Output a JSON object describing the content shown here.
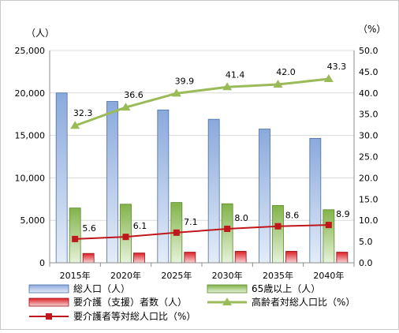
{
  "chart_data": {
    "type": "bar",
    "categories": [
      "2015年",
      "2020年",
      "2025年",
      "2030年",
      "2035年",
      "2040年"
    ],
    "left_axis": {
      "unit": "（人）",
      "range": [
        0,
        25000
      ],
      "ticks": [
        "0",
        "5,000",
        "10,000",
        "15,000",
        "20,000",
        "25,000"
      ]
    },
    "right_axis": {
      "unit": "（%）",
      "range": [
        0,
        50
      ],
      "ticks": [
        "0.0",
        "5.0",
        "10.0",
        "15.0",
        "20.0",
        "25.0",
        "30.0",
        "35.0",
        "40.0",
        "45.0",
        "50.0"
      ]
    },
    "grid": "horizontal",
    "legend_position": "bottom",
    "series": [
      {
        "name": "総人口（人）",
        "type": "bar",
        "axis": "left",
        "color": "#9ab6e2",
        "values": [
          20000,
          19000,
          18000,
          16900,
          15750,
          14650
        ]
      },
      {
        "name": "65歳以上（人）",
        "type": "bar",
        "axis": "left",
        "color": "#8fbf58",
        "values": [
          6450,
          6900,
          7100,
          6950,
          6750,
          6250
        ]
      },
      {
        "name": "要介護（支援）者数（人）",
        "type": "bar",
        "axis": "left",
        "color": "#e0262e",
        "values": [
          1100,
          1150,
          1250,
          1350,
          1350,
          1250
        ]
      },
      {
        "name": "高齢者対総人口比（%）",
        "type": "line",
        "axis": "right",
        "color": "#9bbb59",
        "values": [
          32.3,
          36.6,
          39.9,
          41.4,
          42.0,
          43.3
        ],
        "labels": [
          "32.3",
          "36.6",
          "39.9",
          "41.4",
          "42.0",
          "43.3"
        ]
      },
      {
        "name": "要介護者等対総人口比（%）",
        "type": "line",
        "axis": "right",
        "color": "#c0161c",
        "values": [
          5.6,
          6.1,
          7.1,
          8.0,
          8.6,
          8.9
        ],
        "labels": [
          "5.6",
          "6.1",
          "7.1",
          "8.0",
          "8.6",
          "8.9"
        ]
      }
    ]
  }
}
